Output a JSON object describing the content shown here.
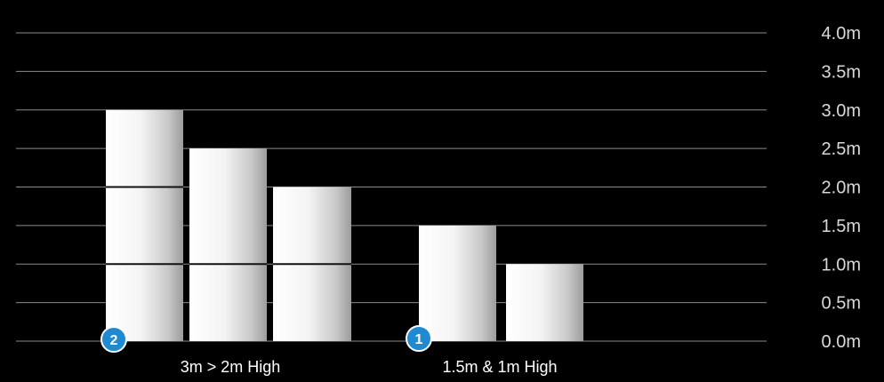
{
  "chart_data": {
    "type": "bar",
    "yaxis": {
      "ticks": [
        "0.0m",
        "0.5m",
        "1.0m",
        "1.5m",
        "2.0m",
        "2.5m",
        "3.0m",
        "3.5m",
        "4.0m"
      ],
      "ylim": [
        0,
        4
      ],
      "grid": true
    },
    "groups": [
      {
        "label": "3m > 2m High",
        "badge": "2",
        "bars": [
          {
            "value": 3.0,
            "segments": [
              1.0,
              1.0,
              1.0
            ]
          },
          {
            "value": 2.5,
            "segments": [
              1.0,
              1.5
            ]
          },
          {
            "value": 2.0,
            "segments": [
              1.0,
              1.0
            ]
          }
        ]
      },
      {
        "label": "1.5m & 1m High",
        "badge": "1",
        "bars": [
          {
            "value": 1.5,
            "segments": [
              1.5
            ]
          },
          {
            "value": 1.0,
            "segments": [
              1.0
            ]
          }
        ]
      }
    ],
    "colors": {
      "background": "#000000",
      "grid": "#8a8a8a",
      "text": "#ffffff",
      "tick_text": "#d9d9d9",
      "badge": "#1f8ad1",
      "divider": "#111111"
    }
  }
}
